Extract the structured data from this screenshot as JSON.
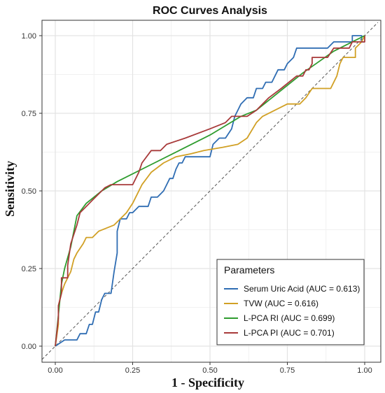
{
  "chart_data": {
    "type": "line",
    "title": "ROC Curves Analysis",
    "xlabel": "1 - Specificity",
    "ylabel": "Sensitivity",
    "xlim": [
      0,
      1
    ],
    "ylim": [
      0,
      1
    ],
    "x_ticks": [
      "0.00",
      "0.25",
      "0.50",
      "0.75",
      "1.00"
    ],
    "y_ticks": [
      "0.00",
      "0.25",
      "0.50",
      "0.75",
      "1.00"
    ],
    "grid": true,
    "legend": {
      "title": "Parameters",
      "placement": "bottom-right"
    },
    "reference_line": {
      "style": "dashed",
      "color": "#555555",
      "points": [
        [
          0,
          0
        ],
        [
          1,
          1
        ]
      ]
    },
    "series": [
      {
        "name": "Serum Uric Acid (AUC = 0.613)",
        "color": "#2f6db3",
        "points": [
          [
            0,
            0
          ],
          [
            0.03,
            0.02
          ],
          [
            0.07,
            0.02
          ],
          [
            0.08,
            0.04
          ],
          [
            0.1,
            0.04
          ],
          [
            0.11,
            0.07
          ],
          [
            0.12,
            0.07
          ],
          [
            0.13,
            0.11
          ],
          [
            0.14,
            0.11
          ],
          [
            0.15,
            0.15
          ],
          [
            0.16,
            0.17
          ],
          [
            0.18,
            0.17
          ],
          [
            0.19,
            0.24
          ],
          [
            0.2,
            0.3
          ],
          [
            0.2,
            0.37
          ],
          [
            0.21,
            0.41
          ],
          [
            0.23,
            0.41
          ],
          [
            0.24,
            0.43
          ],
          [
            0.25,
            0.43
          ],
          [
            0.27,
            0.45
          ],
          [
            0.3,
            0.45
          ],
          [
            0.31,
            0.48
          ],
          [
            0.33,
            0.48
          ],
          [
            0.35,
            0.5
          ],
          [
            0.36,
            0.52
          ],
          [
            0.37,
            0.54
          ],
          [
            0.38,
            0.54
          ],
          [
            0.39,
            0.57
          ],
          [
            0.4,
            0.59
          ],
          [
            0.41,
            0.59
          ],
          [
            0.42,
            0.61
          ],
          [
            0.5,
            0.61
          ],
          [
            0.51,
            0.65
          ],
          [
            0.53,
            0.67
          ],
          [
            0.55,
            0.67
          ],
          [
            0.57,
            0.7
          ],
          [
            0.58,
            0.74
          ],
          [
            0.59,
            0.76
          ],
          [
            0.6,
            0.78
          ],
          [
            0.62,
            0.8
          ],
          [
            0.64,
            0.8
          ],
          [
            0.65,
            0.83
          ],
          [
            0.67,
            0.83
          ],
          [
            0.68,
            0.85
          ],
          [
            0.7,
            0.85
          ],
          [
            0.71,
            0.87
          ],
          [
            0.72,
            0.89
          ],
          [
            0.74,
            0.89
          ],
          [
            0.75,
            0.91
          ],
          [
            0.77,
            0.93
          ],
          [
            0.78,
            0.96
          ],
          [
            0.88,
            0.96
          ],
          [
            0.9,
            0.98
          ],
          [
            0.96,
            0.98
          ],
          [
            0.96,
            1
          ],
          [
            0.99,
            1
          ],
          [
            0.99,
            0.98
          ],
          [
            1,
            0.98
          ]
        ]
      },
      {
        "name": "TVW (AUC = 0.616)",
        "color": "#d1a025",
        "points": [
          [
            0,
            0
          ],
          [
            0.01,
            0.07
          ],
          [
            0.01,
            0.13
          ],
          [
            0.02,
            0.17
          ],
          [
            0.03,
            0.2
          ],
          [
            0.05,
            0.24
          ],
          [
            0.06,
            0.28
          ],
          [
            0.07,
            0.3
          ],
          [
            0.09,
            0.33
          ],
          [
            0.1,
            0.35
          ],
          [
            0.12,
            0.35
          ],
          [
            0.14,
            0.37
          ],
          [
            0.19,
            0.39
          ],
          [
            0.21,
            0.41
          ],
          [
            0.23,
            0.43
          ],
          [
            0.25,
            0.46
          ],
          [
            0.28,
            0.52
          ],
          [
            0.31,
            0.56
          ],
          [
            0.35,
            0.59
          ],
          [
            0.39,
            0.61
          ],
          [
            0.44,
            0.62
          ],
          [
            0.48,
            0.63
          ],
          [
            0.54,
            0.64
          ],
          [
            0.59,
            0.65
          ],
          [
            0.62,
            0.67
          ],
          [
            0.65,
            0.72
          ],
          [
            0.67,
            0.74
          ],
          [
            0.71,
            0.76
          ],
          [
            0.75,
            0.78
          ],
          [
            0.79,
            0.78
          ],
          [
            0.81,
            0.8
          ],
          [
            0.83,
            0.83
          ],
          [
            0.86,
            0.83
          ],
          [
            0.89,
            0.83
          ],
          [
            0.91,
            0.87
          ],
          [
            0.92,
            0.91
          ],
          [
            0.93,
            0.93
          ],
          [
            0.97,
            0.93
          ],
          [
            0.97,
            0.96
          ],
          [
            0.99,
            0.98
          ],
          [
            1,
            1
          ]
        ]
      },
      {
        "name": "L-PCA RI (AUC = 0.699)",
        "color": "#2e9c2e",
        "points": [
          [
            0,
            0
          ],
          [
            0.02,
            0.2
          ],
          [
            0.03,
            0.25
          ],
          [
            0.05,
            0.32
          ],
          [
            0.07,
            0.42
          ],
          [
            0.1,
            0.46
          ],
          [
            0.15,
            0.5
          ],
          [
            0.2,
            0.53
          ],
          [
            0.3,
            0.58
          ],
          [
            0.4,
            0.63
          ],
          [
            0.5,
            0.68
          ],
          [
            0.6,
            0.74
          ],
          [
            0.65,
            0.76
          ],
          [
            0.7,
            0.8
          ],
          [
            0.8,
            0.88
          ],
          [
            0.9,
            0.95
          ],
          [
            1,
            1
          ]
        ]
      },
      {
        "name": "L-PCA PI (AUC = 0.701)",
        "color": "#a83a3a",
        "points": [
          [
            0,
            0
          ],
          [
            0.01,
            0.09
          ],
          [
            0.01,
            0.13
          ],
          [
            0.02,
            0.17
          ],
          [
            0.02,
            0.22
          ],
          [
            0.04,
            0.22
          ],
          [
            0.04,
            0.26
          ],
          [
            0.05,
            0.33
          ],
          [
            0.07,
            0.39
          ],
          [
            0.08,
            0.43
          ],
          [
            0.1,
            0.45
          ],
          [
            0.12,
            0.47
          ],
          [
            0.14,
            0.49
          ],
          [
            0.16,
            0.51
          ],
          [
            0.18,
            0.52
          ],
          [
            0.25,
            0.52
          ],
          [
            0.27,
            0.56
          ],
          [
            0.28,
            0.59
          ],
          [
            0.31,
            0.63
          ],
          [
            0.34,
            0.63
          ],
          [
            0.36,
            0.65
          ],
          [
            0.42,
            0.67
          ],
          [
            0.5,
            0.7
          ],
          [
            0.55,
            0.72
          ],
          [
            0.57,
            0.74
          ],
          [
            0.62,
            0.74
          ],
          [
            0.65,
            0.76
          ],
          [
            0.69,
            0.8
          ],
          [
            0.73,
            0.83
          ],
          [
            0.78,
            0.87
          ],
          [
            0.8,
            0.87
          ],
          [
            0.81,
            0.89
          ],
          [
            0.82,
            0.89
          ],
          [
            0.83,
            0.91
          ],
          [
            0.83,
            0.93
          ],
          [
            0.88,
            0.93
          ],
          [
            0.9,
            0.96
          ],
          [
            0.95,
            0.96
          ],
          [
            0.96,
            0.98
          ],
          [
            1,
            0.98
          ],
          [
            1,
            1
          ]
        ]
      }
    ]
  }
}
